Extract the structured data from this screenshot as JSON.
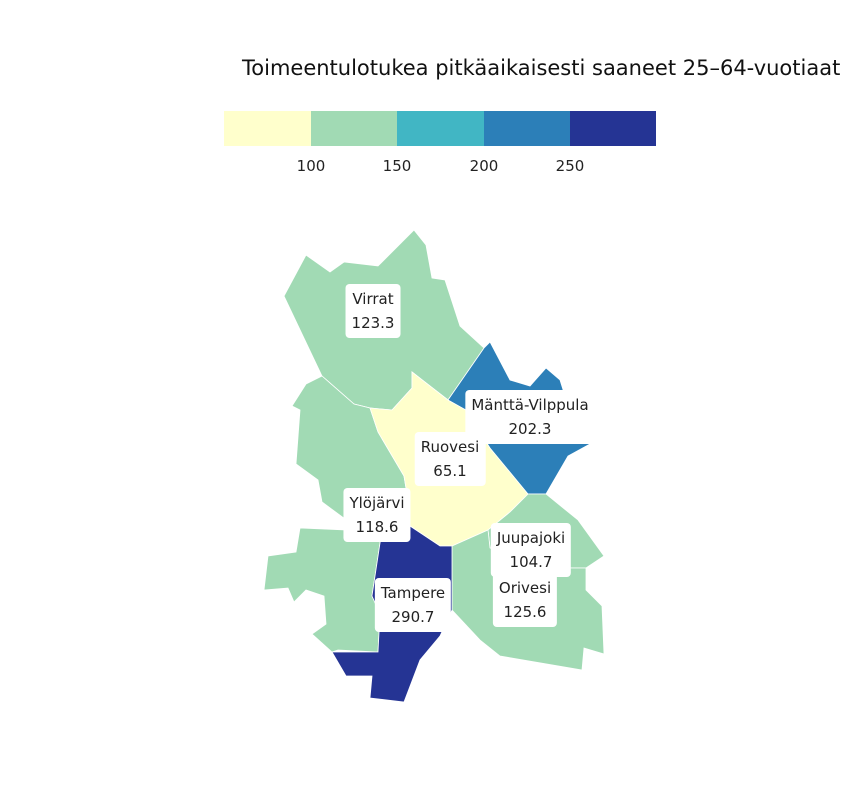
{
  "title": "Toimeentulotukea pitkäaikaisesti saaneet 25–64-vuotiaat",
  "legend": {
    "colors": [
      "#ffffcc",
      "#a1dab4",
      "#41b6c4",
      "#2c7fb8",
      "#253494"
    ],
    "ticks": [
      "100",
      "150",
      "200",
      "250"
    ]
  },
  "regions": [
    {
      "name": "Virrat",
      "value": "123.3",
      "color": "#a1dab4"
    },
    {
      "name": "Mänttä-Vilppula",
      "value": "202.3",
      "color": "#2c7fb8"
    },
    {
      "name": "Ruovesi",
      "value": "65.1",
      "color": "#ffffcc"
    },
    {
      "name": "Ylöjärvi",
      "value": "118.6",
      "color": "#a1dab4"
    },
    {
      "name": "Juupajoki",
      "value": "104.7",
      "color": "#a1dab4"
    },
    {
      "name": "Orivesi",
      "value": "125.6",
      "color": "#a1dab4"
    },
    {
      "name": "Tampere",
      "value": "290.7",
      "color": "#253494"
    }
  ]
}
